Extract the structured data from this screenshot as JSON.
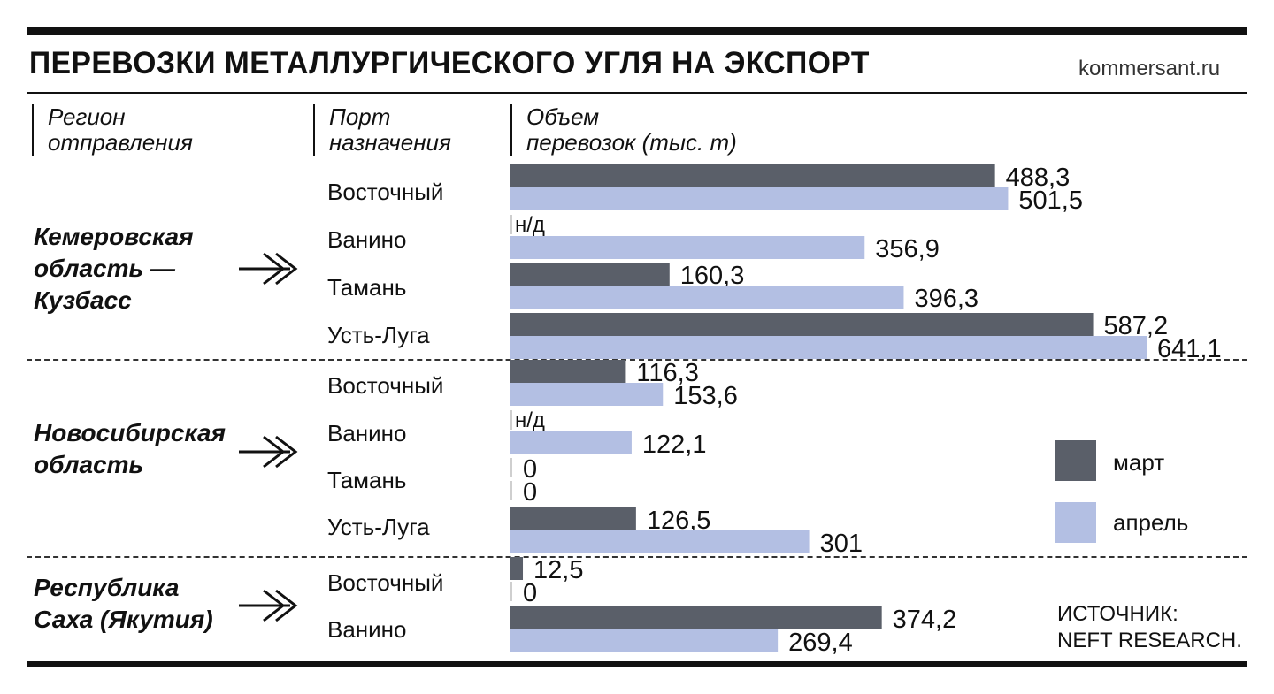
{
  "header": {
    "title": "ПЕРЕВОЗКИ МЕТАЛЛУРГИЧЕСКОГО УГЛЯ НА ЭКСПОРТ",
    "site": "kommersant.ru"
  },
  "columns": {
    "region": [
      "Регион",
      "отправления"
    ],
    "port": [
      "Порт",
      "назначения"
    ],
    "volume": [
      "Объем",
      "перевозок (тыс. т)"
    ]
  },
  "regions": [
    {
      "name": [
        "Кемеровская",
        "область —",
        "Кузбасс"
      ],
      "arrow_icon": "double-chevron-right-icon"
    },
    {
      "name": [
        "Новосибирская",
        "область"
      ],
      "arrow_icon": "double-chevron-right-icon"
    },
    {
      "name": [
        "Республика",
        "Саха (Якутия)"
      ],
      "arrow_icon": "double-chevron-right-icon"
    }
  ],
  "legend": {
    "march": "март",
    "april": "апрель"
  },
  "source": [
    "ИСТОЧНИК:",
    "NEFT RESEARCH."
  ],
  "colors": {
    "march": "#5a5f69",
    "april": "#b3bfe3"
  },
  "chart_data": {
    "type": "bar",
    "orientation": "horizontal",
    "groups": [
      "Кемеровская область — Кузбасс",
      "Новосибирская область",
      "Республика Саха (Якутия)"
    ],
    "categories": [
      "Восточный",
      "Ванино",
      "Тамань",
      "Усть-Луга",
      "Восточный",
      "Ванино",
      "Тамань",
      "Усть-Луга",
      "Восточный",
      "Ванино"
    ],
    "category_group": [
      0,
      0,
      0,
      0,
      1,
      1,
      1,
      1,
      2,
      2
    ],
    "series": [
      {
        "name": "март",
        "values": [
          488.3,
          null,
          160.3,
          587.2,
          116.3,
          null,
          0,
          126.5,
          12.5,
          374.2
        ],
        "labels": [
          "488,3",
          "н/д",
          "160,3",
          "587,2",
          "116,3",
          "н/д",
          "0",
          "126,5",
          "12,5",
          "374,2"
        ]
      },
      {
        "name": "апрель",
        "values": [
          501.5,
          356.9,
          396.3,
          641.1,
          153.6,
          122.1,
          0,
          301,
          0,
          269.4
        ],
        "labels": [
          "501,5",
          "356,9",
          "396,3",
          "641,1",
          "153,6",
          "122,1",
          "0",
          "301",
          "0",
          "269,4"
        ]
      }
    ],
    "unit": "тыс. т",
    "xlim": [
      0,
      641.1
    ],
    "grid": false,
    "legend_position": "right"
  }
}
